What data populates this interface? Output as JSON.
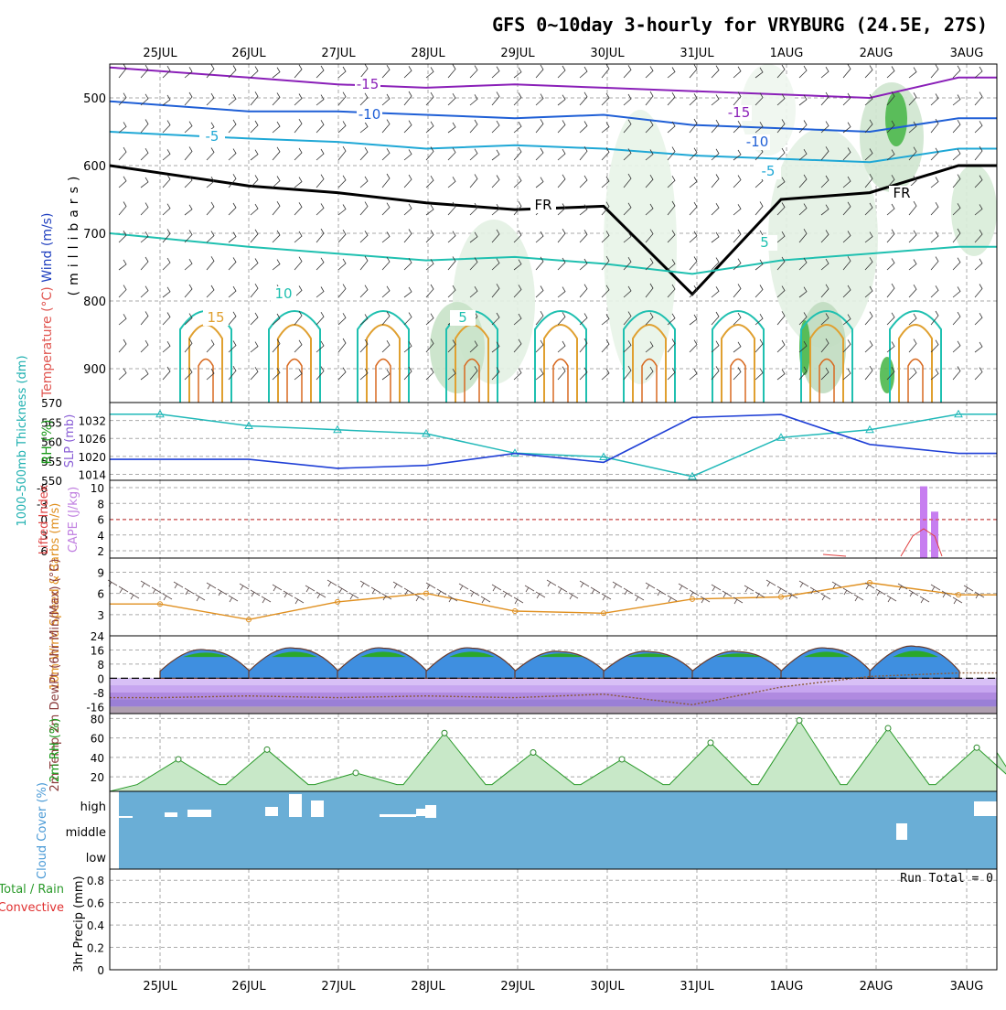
{
  "title": "GFS 0~10day 3-hourly for VRYBURG (24.5E, 27S)",
  "date_labels": [
    "25JUL",
    "26JUL",
    "27JUL",
    "28JUL",
    "29JUL",
    "30JUL",
    "31JUL",
    "1AUG",
    "2AUG",
    "3AUG"
  ],
  "colors": {
    "rh_green": "#3cb33c",
    "temp_purple": "#8a1fb8",
    "temp_blue": "#1f5fd6",
    "temp_cyan": "#1fa8d6",
    "temp_teal": "#1fc0b0",
    "temp_orange": "#e0a030",
    "freezing": "#000000",
    "cloud_blue": "#6aaed6"
  },
  "panels": {
    "upper_air": {
      "ylabel_wind": "Wind (m/s)",
      "ylabel_temp": "Temperature (°C)",
      "ylabel_rh": "RH (%)",
      "ylabel_units": "(millibars)",
      "ytick_labels": [
        "500",
        "600",
        "700",
        "800",
        "900"
      ],
      "isotherm_labels": [
        "-15",
        "-15",
        "-10",
        "-10",
        "-5",
        "-5",
        "-5",
        "FR",
        "FR",
        "5",
        "5",
        "10",
        "15",
        "-10"
      ],
      "chart_data": {
        "type": "line",
        "x": [
          "25JUL",
          "26JUL",
          "27JUL",
          "28JUL",
          "29JUL",
          "30JUL",
          "31JUL",
          "1AUG",
          "2AUG",
          "3AUG"
        ],
        "ylim": [
          950,
          450
        ],
        "series": [
          {
            "name": "-15",
            "values": [
              455,
              470,
              480,
              485,
              480,
              485,
              490,
              495,
              500,
              470
            ]
          },
          {
            "name": "-10",
            "values": [
              505,
              520,
              520,
              525,
              530,
              525,
              540,
              545,
              550,
              530
            ]
          },
          {
            "name": "-5",
            "values": [
              550,
              560,
              565,
              575,
              570,
              575,
              585,
              590,
              595,
              575
            ]
          },
          {
            "name": "FR",
            "values": [
              600,
              630,
              640,
              655,
              665,
              660,
              790,
              650,
              640,
              600
            ]
          },
          {
            "name": "5",
            "values": [
              700,
              720,
              730,
              740,
              735,
              745,
              760,
              740,
              730,
              720
            ]
          }
        ]
      }
    },
    "thickness_slp": {
      "ylabel_thick": "1000-500mb Thickness (dm)",
      "ylabel_slp": "SLP (mb)",
      "ytick_left": [
        "570",
        "565",
        "560",
        "555",
        "550"
      ],
      "ytick_right": [
        "1032",
        "1026",
        "1020",
        "1014"
      ],
      "chart_data": {
        "type": "line",
        "x": [
          "25JUL",
          "26JUL",
          "27JUL",
          "28JUL",
          "29JUL",
          "30JUL",
          "31JUL",
          "1AUG",
          "2AUG",
          "3AUG"
        ],
        "series": [
          {
            "name": "1000-500mb Thickness (dm)",
            "axis": "left",
            "ylim": [
              550,
              570
            ],
            "values": [
              567,
              564,
              563,
              562,
              557,
              556,
              551,
              561,
              563,
              567
            ]
          },
          {
            "name": "SLP (mb)",
            "axis": "right",
            "ylim": [
              1012,
              1038
            ],
            "values": [
              1019,
              1019,
              1016,
              1017,
              1021,
              1018,
              1033,
              1034,
              1024,
              1021
            ]
          }
        ]
      }
    },
    "cape_li": {
      "ylabel_li": "Lifted Index",
      "ylabel_cape": "CAPE (J/kg)",
      "ytick_left": [
        "-6",
        "-3",
        "0",
        "3",
        "6"
      ],
      "ytick_right": [
        "10",
        "8",
        "6",
        "4",
        "2"
      ],
      "chart_data": {
        "type": "bar",
        "x": [
          "2AUG 12Z",
          "2AUG 15Z"
        ],
        "series": [
          {
            "name": "CAPE (J/kg)",
            "values": [
              10.2,
              6.3
            ]
          }
        ],
        "ylim": [
          0,
          10
        ]
      }
    },
    "wind10m": {
      "ylabel": "10m Wind Speed & Barbs (m/s)",
      "ytick": [
        "9",
        "6",
        "3"
      ],
      "chart_data": {
        "type": "line",
        "x": [
          "25JUL",
          "26JUL",
          "27JUL",
          "28JUL",
          "29JUL",
          "30JUL",
          "31JUL",
          "1AUG",
          "2AUG",
          "3AUG"
        ],
        "ylim": [
          0,
          11
        ],
        "series": [
          {
            "name": "Speed",
            "values": [
              4.5,
              2.3,
              4.8,
              6,
              3.5,
              3.2,
              5.2,
              5.5,
              7.5,
              5.8
            ]
          }
        ]
      }
    },
    "temp2m": {
      "ylabel": "2m Temp 2m DewPt (6hr Min/Max) (°C)",
      "ytick": [
        "24",
        "16",
        "8",
        "0",
        "-8",
        "-16"
      ],
      "chart_data": {
        "type": "line",
        "x": [
          "25JUL",
          "26JUL",
          "27JUL",
          "28JUL",
          "29JUL",
          "30JUL",
          "31JUL",
          "1AUG",
          "2AUG",
          "3AUG"
        ],
        "ylim": [
          -20,
          24
        ],
        "series": [
          {
            "name": "2m Temp",
            "values": [
              16,
              17,
              17,
              17,
              15,
              15,
              15,
              17,
              18,
              12
            ]
          },
          {
            "name": "2m DewPt",
            "values": [
              -11,
              -10,
              -11,
              -10,
              -11,
              -9,
              -15,
              -5,
              1,
              3
            ]
          }
        ]
      }
    },
    "rh2m": {
      "ylabel": "2m RH (%)",
      "ytick": [
        "80",
        "60",
        "40",
        "20"
      ],
      "chart_data": {
        "type": "area",
        "x": [
          "25JUL",
          "26JUL",
          "27JUL",
          "28JUL",
          "29JUL",
          "30JUL",
          "31JUL",
          "1AUG",
          "2AUG",
          "3AUG"
        ],
        "ylim": [
          5,
          85
        ],
        "series": [
          {
            "name": "2m RH",
            "values": [
              38,
              48,
              24,
              65,
              45,
              38,
              55,
              78,
              70,
              50
            ]
          }
        ]
      }
    },
    "cloud": {
      "ylabel": "Cloud Cover (%)",
      "ytick": [
        "high",
        "middle",
        "low"
      ]
    },
    "precip": {
      "ylabel_rain": "Total / Rain",
      "ylabel_conv": "Convective",
      "ylabel": "3hr Precip (mm)",
      "ytick": [
        "0.8",
        "0.6",
        "0.4",
        "0.2",
        "0"
      ],
      "run_total": "Run Total = 0",
      "chart_data": {
        "type": "bar",
        "x": [
          "25JUL",
          "26JUL",
          "27JUL",
          "28JUL",
          "29JUL",
          "30JUL",
          "31JUL",
          "1AUG",
          "2AUG",
          "3AUG"
        ],
        "ylim": [
          0,
          0.9
        ],
        "values": [
          0,
          0,
          0,
          0,
          0,
          0,
          0,
          0,
          0,
          0
        ]
      }
    }
  }
}
